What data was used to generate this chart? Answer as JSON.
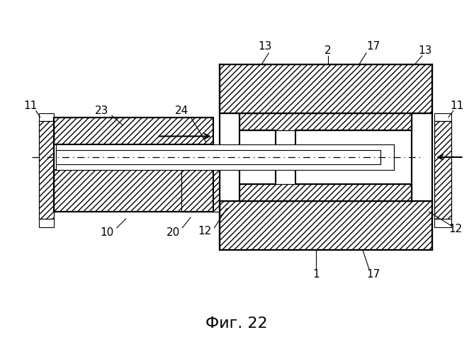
{
  "title": "Фиг. 22",
  "bg_color": "#ffffff",
  "line_color": "#000000",
  "lw_main": 1.5,
  "lw_thin": 0.8,
  "hatch": "////",
  "label_fontsize": 11,
  "title_fontsize": 16
}
